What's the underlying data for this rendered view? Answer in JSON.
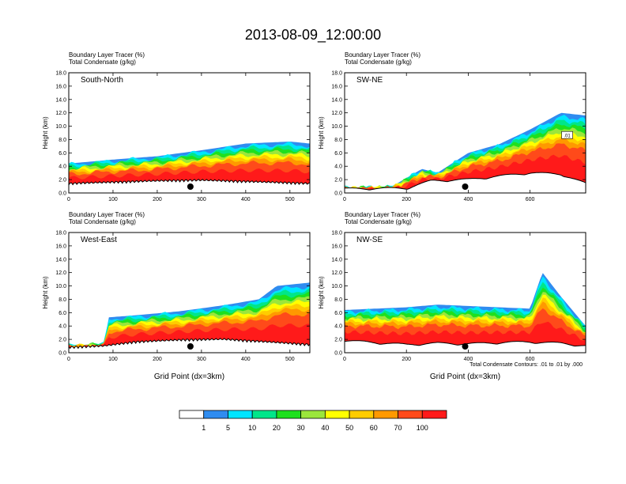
{
  "title": "2013-08-09_12:00:00",
  "colors": {
    "tracer_levels": [
      "#ffffff",
      "#2f8cf0",
      "#00e5ff",
      "#00e68a",
      "#1ee01e",
      "#9be63c",
      "#ffff00",
      "#ffcc00",
      "#ff9900",
      "#ff4a1a",
      "#ff1a1a"
    ],
    "terrain": "#000000",
    "condensate_contour": "#000000"
  },
  "chart_data": [
    {
      "type": "heatmap",
      "panel_label": "South-North",
      "field_labels": [
        "Boundary Layer Tracer   (%)",
        "Total Condensate   (g/kg)"
      ],
      "ylabel": "Height (km)",
      "xlabel": "",
      "xlim": [
        0,
        545
      ],
      "ylim": [
        0,
        18
      ],
      "xticks": [
        "0",
        "100",
        "200",
        "300",
        "400",
        "500"
      ],
      "yticks": [
        "0.0",
        "2.0",
        "4.0",
        "6.0",
        "8.0",
        "10.0",
        "12.0",
        "14.0",
        "16.0",
        "18.0"
      ],
      "marker_x": 275,
      "layer_top_km": [
        [
          0,
          4.4
        ],
        [
          100,
          5.0
        ],
        [
          200,
          5.5
        ],
        [
          300,
          6.4
        ],
        [
          400,
          7.4
        ],
        [
          500,
          7.7
        ],
        [
          545,
          7.4
        ]
      ],
      "terrain_km": [
        [
          0,
          1.2
        ],
        [
          100,
          1.4
        ],
        [
          200,
          1.6
        ],
        [
          300,
          1.7
        ],
        [
          400,
          1.5
        ],
        [
          500,
          1.3
        ],
        [
          545,
          1.2
        ]
      ]
    },
    {
      "type": "heatmap",
      "panel_label": "SW-NE",
      "field_labels": [
        "Boundary Layer Tracer   (%)",
        "Total Condensate   (g/kg)"
      ],
      "ylabel": "Height (km)",
      "xlabel": "",
      "xlim": [
        0,
        780
      ],
      "ylim": [
        0,
        18
      ],
      "xticks": [
        "0",
        "200",
        "400",
        "600"
      ],
      "yticks": [
        "0.0",
        "2.0",
        "4.0",
        "6.0",
        "8.0",
        "10.0",
        "12.0",
        "14.0",
        "16.0",
        "18.0"
      ],
      "marker_x": 390,
      "contour_labels": [
        ".01"
      ],
      "layer_top_km": [
        [
          0,
          0.8
        ],
        [
          150,
          0.9
        ],
        [
          250,
          3.6
        ],
        [
          300,
          3.0
        ],
        [
          400,
          6.0
        ],
        [
          500,
          7.3
        ],
        [
          600,
          9.5
        ],
        [
          700,
          12.0
        ],
        [
          780,
          11.6
        ]
      ],
      "terrain_km": [
        [
          0,
          0.4
        ],
        [
          200,
          0.5
        ],
        [
          280,
          1.6
        ],
        [
          400,
          1.8
        ],
        [
          500,
          2.3
        ],
        [
          600,
          2.8
        ],
        [
          700,
          2.6
        ],
        [
          780,
          1.2
        ]
      ]
    },
    {
      "type": "heatmap",
      "panel_label": "West-East",
      "field_labels": [
        "Boundary Layer Tracer   (%)",
        "Total Condensate   (g/kg)"
      ],
      "ylabel": "Height (km)",
      "xlabel": "Grid Point (dx=3km)",
      "xlim": [
        0,
        545
      ],
      "ylim": [
        0,
        18
      ],
      "xticks": [
        "0",
        "100",
        "200",
        "300",
        "400",
        "500"
      ],
      "yticks": [
        "0.0",
        "2.0",
        "4.0",
        "6.0",
        "8.0",
        "10.0",
        "12.0",
        "14.0",
        "16.0",
        "18.0"
      ],
      "marker_x": 275,
      "layer_top_km": [
        [
          0,
          1.1
        ],
        [
          80,
          1.3
        ],
        [
          90,
          5.3
        ],
        [
          150,
          5.6
        ],
        [
          250,
          6.2
        ],
        [
          350,
          7.1
        ],
        [
          430,
          8.0
        ],
        [
          470,
          10.0
        ],
        [
          545,
          10.5
        ]
      ],
      "terrain_km": [
        [
          0,
          0.6
        ],
        [
          80,
          0.8
        ],
        [
          150,
          1.4
        ],
        [
          250,
          1.7
        ],
        [
          350,
          1.8
        ],
        [
          450,
          1.4
        ],
        [
          545,
          1.0
        ]
      ]
    },
    {
      "type": "heatmap",
      "panel_label": "NW-SE",
      "field_labels": [
        "Boundary Layer Tracer   (%)",
        "Total Condensate   (g/kg)"
      ],
      "ylabel": "Height (km)",
      "xlabel": "Grid Point (dx=3km)",
      "xlim": [
        0,
        780
      ],
      "ylim": [
        0,
        18
      ],
      "xticks": [
        "0",
        "200",
        "400",
        "600"
      ],
      "yticks": [
        "0.0",
        "2.0",
        "4.0",
        "6.0",
        "8.0",
        "10.0",
        "12.0",
        "14.0",
        "16.0",
        "18.0"
      ],
      "marker_x": 390,
      "layer_top_km": [
        [
          0,
          6.4
        ],
        [
          100,
          6.6
        ],
        [
          200,
          6.8
        ],
        [
          300,
          7.2
        ],
        [
          400,
          7.0
        ],
        [
          500,
          6.8
        ],
        [
          600,
          6.6
        ],
        [
          640,
          12.0
        ],
        [
          700,
          8.4
        ],
        [
          780,
          4.0
        ]
      ],
      "terrain_km": [
        [
          0,
          1.6
        ],
        [
          100,
          1.3
        ],
        [
          200,
          1.0
        ],
        [
          300,
          1.2
        ],
        [
          400,
          1.1
        ],
        [
          500,
          1.3
        ],
        [
          600,
          1.4
        ],
        [
          700,
          1.2
        ],
        [
          780,
          0.8
        ]
      ]
    }
  ],
  "contour_note": "Total Condensate Contours: .01 to .01 by .000",
  "colorbar": {
    "labels": [
      "1",
      "5",
      "10",
      "20",
      "30",
      "40",
      "50",
      "60",
      "70",
      "100"
    ]
  }
}
